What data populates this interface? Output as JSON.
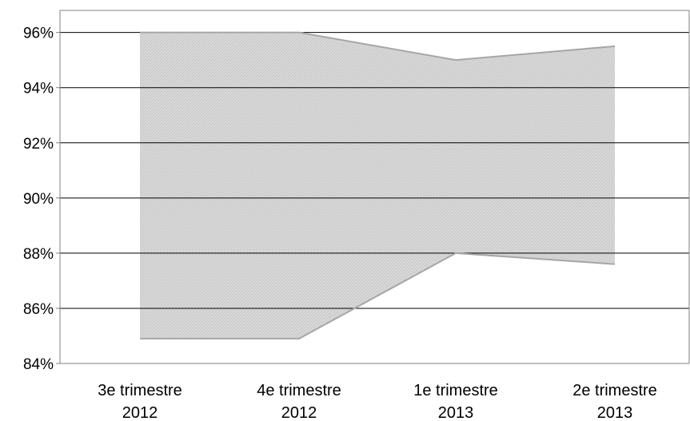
{
  "chart_data": {
    "type": "area",
    "title": "",
    "xlabel": "",
    "ylabel": "",
    "categories": [
      [
        "3e trimestre",
        "2012"
      ],
      [
        "4e trimestre",
        "2012"
      ],
      [
        "1e trimestre",
        "2013"
      ],
      [
        "2e trimestre",
        "2013"
      ]
    ],
    "band": {
      "upper": [
        96.0,
        96.0,
        95.0,
        95.5
      ],
      "lower": [
        84.9,
        84.9,
        88.0,
        87.6
      ]
    },
    "ylim": [
      84,
      96.8
    ],
    "yticks": [
      84,
      86,
      88,
      90,
      92,
      94,
      96
    ],
    "ytick_labels": [
      "84%",
      "86%",
      "88%",
      "90%",
      "92%",
      "94%",
      "96%"
    ],
    "grid": true,
    "legend": "none",
    "colors": {
      "band_fill": "#d9d9d9",
      "band_hatch": "#bfbfbf",
      "band_edge": "#a6a6a6",
      "gridline": "#000000",
      "axis": "#808080"
    }
  }
}
